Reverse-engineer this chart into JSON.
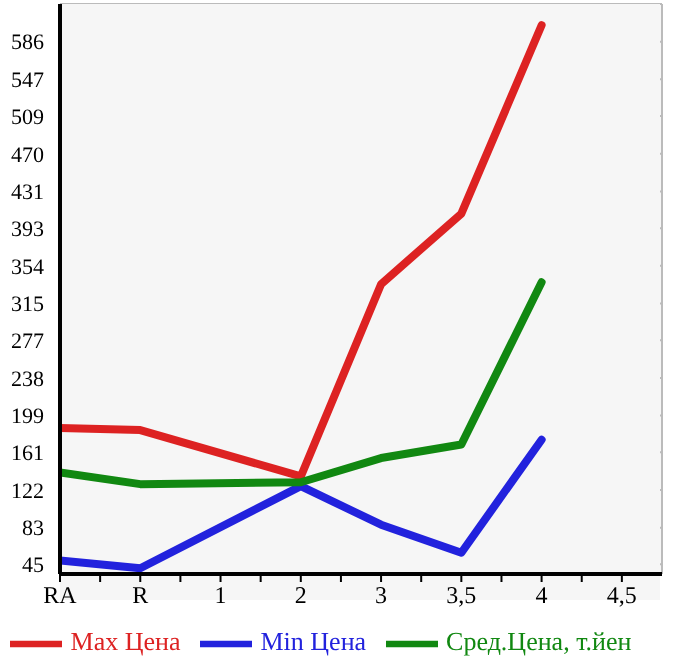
{
  "chart_data": {
    "type": "line",
    "categories": [
      "RA",
      "R",
      "1",
      "2",
      "3",
      "3,5",
      "4",
      "4,5"
    ],
    "series": [
      {
        "name": "Max Цена",
        "color": "#dd2222",
        "values": [
          186,
          184,
          null,
          136,
          335,
          408,
          603,
          null
        ]
      },
      {
        "name": "Min Цена",
        "color": "#2222dd",
        "values": [
          49,
          41,
          null,
          126,
          86,
          57,
          174,
          null
        ]
      },
      {
        "name": "Сред.Цена, т.йен",
        "color": "#118811",
        "values": [
          140,
          128,
          null,
          130,
          155,
          169,
          337,
          null
        ]
      }
    ],
    "ylim": [
      35,
      625
    ],
    "yticks": [
      45,
      83,
      122,
      161,
      199,
      238,
      277,
      315,
      354,
      393,
      431,
      470,
      509,
      547,
      586
    ],
    "grid": true,
    "legend": "bottom",
    "marker": "none",
    "line_style": "solid"
  }
}
